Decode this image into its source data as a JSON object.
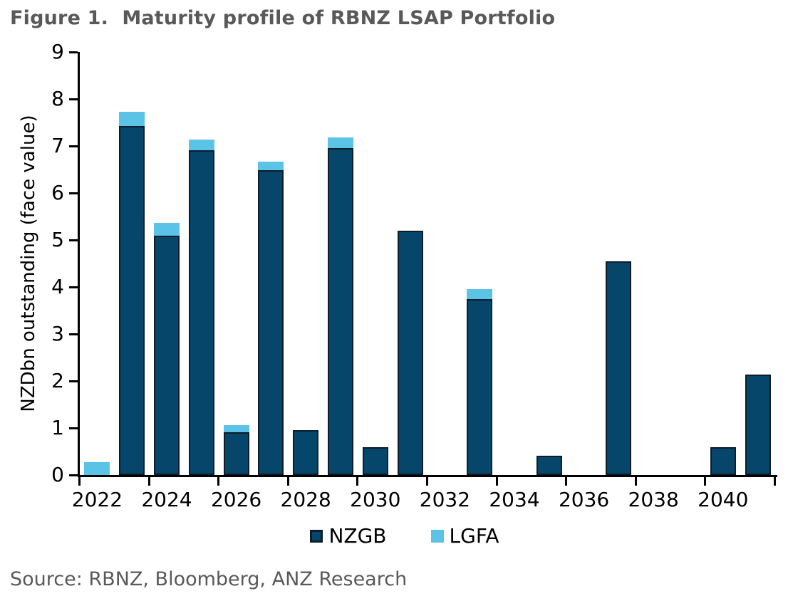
{
  "title": "Figure 1.  Maturity profile of RBNZ LSAP Portfolio",
  "source": "Source: RBNZ, Bloomberg, ANZ Research",
  "colors": {
    "nzgb_fill": "#07466b",
    "nzgb_border": "#0d1c2b",
    "lgfa_fill": "#5bc3e5",
    "axis": "#000000",
    "heading_gray": "#595959"
  },
  "legend": {
    "items": [
      {
        "label": "NZGB",
        "color": "#07466b",
        "border": "#0d1c2b"
      },
      {
        "label": "LGFA",
        "color": "#5bc3e5",
        "border": ""
      }
    ]
  },
  "chart_data": {
    "type": "bar",
    "stacked": true,
    "title": "Figure 1. Maturity profile of RBNZ LSAP Portfolio",
    "xlabel": "",
    "ylabel": "NZDbn outstanding (face value)",
    "ylim": [
      0,
      9
    ],
    "ytick_interval": 1,
    "ytick_labels": [
      "0",
      "1",
      "2",
      "3",
      "4",
      "5",
      "6",
      "7",
      "8",
      "9"
    ],
    "grid": false,
    "legend_position": "bottom",
    "categories": [
      2022,
      2023,
      2024,
      2025,
      2026,
      2027,
      2028,
      2029,
      2030,
      2031,
      2032,
      2033,
      2034,
      2035,
      2036,
      2037,
      2038,
      2039,
      2040,
      2041
    ],
    "xtick_labels": [
      "2022",
      "2024",
      "2026",
      "2028",
      "2030",
      "2032",
      "2034",
      "2036",
      "2038",
      "2040"
    ],
    "series": [
      {
        "name": "NZGB",
        "color": "#07466b",
        "values": [
          0,
          7.43,
          5.09,
          6.91,
          0.91,
          6.48,
          0.95,
          6.95,
          0.59,
          5.2,
          0,
          3.74,
          0,
          0.41,
          0,
          4.55,
          0,
          0,
          0.59,
          2.13
        ]
      },
      {
        "name": "LGFA",
        "color": "#5bc3e5",
        "values": [
          0.27,
          0.3,
          0.27,
          0.22,
          0.15,
          0.19,
          0,
          0.23,
          0,
          0,
          0,
          0.22,
          0,
          0,
          0,
          0,
          0,
          0,
          0,
          0
        ]
      }
    ]
  }
}
